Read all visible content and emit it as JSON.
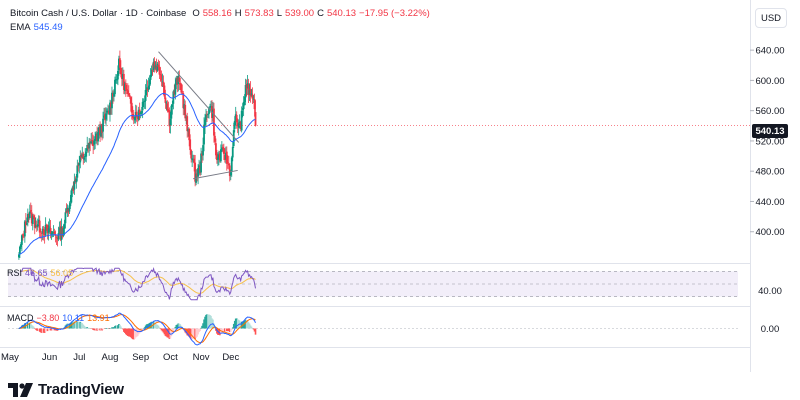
{
  "header": {
    "symbol": "Bitcoin Cash / U.S. Dollar · 1D · Coinbase",
    "open_label": "O",
    "open": "558.16",
    "high_label": "H",
    "high": "573.83",
    "low_label": "L",
    "low": "539.00",
    "close_label": "C",
    "close": "540.13",
    "change": "−17.95 (−3.22%)",
    "ema_label": "EMA",
    "ema_value": "545.49"
  },
  "currency_button": "USD",
  "last_price_tag": "540.13",
  "rsi_legend": {
    "label": "RSI",
    "v1": "46.65",
    "v2": "56.05"
  },
  "macd_legend": {
    "label": "MACD",
    "v1": "−3.80",
    "v2": "10.11",
    "v3": "13.91"
  },
  "brand": {
    "name": "TradingView"
  },
  "colors": {
    "up": "#089981",
    "down": "#f23645",
    "ema": "#2962ff",
    "rsi_line": "#7e57c2",
    "rsi_ma": "#f7c14a",
    "rsi_band": "#ede7f6",
    "macd_line": "#2962ff",
    "signal_line": "#ff6d00",
    "hist_up_strong": "#26a69a",
    "hist_up_weak": "#b2dfdb",
    "hist_down_strong": "#ff5252",
    "hist_down_weak": "#ffcdd2",
    "trendline": "#787b86",
    "text": "#131722"
  },
  "chart_data": [
    {
      "type": "candlestick",
      "title": "Bitcoin Cash / U.S. Dollar · 1D · Coinbase",
      "x_labels": [
        "May",
        "Jun",
        "Jul",
        "Aug",
        "Sep",
        "Oct",
        "Nov",
        "Dec"
      ],
      "y_ticks": [
        400,
        440,
        480,
        520,
        560,
        600,
        640
      ],
      "ylim": [
        360,
        660
      ],
      "anchors": [
        {
          "date": "2023-05-01",
          "close": 370
        },
        {
          "date": "2023-05-10",
          "close": 425
        },
        {
          "date": "2023-05-20",
          "close": 408
        },
        {
          "date": "2023-05-30",
          "close": 400
        },
        {
          "date": "2023-06-10",
          "close": 395
        },
        {
          "date": "2023-06-14",
          "close": 402
        },
        {
          "date": "2023-06-22",
          "close": 445
        },
        {
          "date": "2023-06-30",
          "close": 488
        },
        {
          "date": "2023-07-10",
          "close": 510
        },
        {
          "date": "2023-07-20",
          "close": 528
        },
        {
          "date": "2023-07-31",
          "close": 560
        },
        {
          "date": "2023-08-06",
          "close": 598
        },
        {
          "date": "2023-08-10",
          "close": 620
        },
        {
          "date": "2023-08-18",
          "close": 582
        },
        {
          "date": "2023-08-24",
          "close": 558
        },
        {
          "date": "2023-08-31",
          "close": 556
        },
        {
          "date": "2023-09-08",
          "close": 595
        },
        {
          "date": "2023-09-14",
          "close": 622
        },
        {
          "date": "2023-09-18",
          "close": 618
        },
        {
          "date": "2023-09-22",
          "close": 608
        },
        {
          "date": "2023-09-25",
          "close": 585
        },
        {
          "date": "2023-09-30",
          "close": 548
        },
        {
          "date": "2023-10-04",
          "close": 580
        },
        {
          "date": "2023-10-08",
          "close": 600
        },
        {
          "date": "2023-10-12",
          "close": 590
        },
        {
          "date": "2023-10-18",
          "close": 535
        },
        {
          "date": "2023-10-22",
          "close": 505
        },
        {
          "date": "2023-10-26",
          "close": 474
        },
        {
          "date": "2023-10-31",
          "close": 484
        },
        {
          "date": "2023-11-05",
          "close": 545
        },
        {
          "date": "2023-11-09",
          "close": 568
        },
        {
          "date": "2023-11-13",
          "close": 555
        },
        {
          "date": "2023-11-16",
          "close": 496
        },
        {
          "date": "2023-11-20",
          "close": 500
        },
        {
          "date": "2023-11-24",
          "close": 505
        },
        {
          "date": "2023-11-28",
          "close": 490
        },
        {
          "date": "2023-12-01",
          "close": 478
        },
        {
          "date": "2023-12-03",
          "close": 520
        },
        {
          "date": "2023-12-06",
          "close": 550
        },
        {
          "date": "2023-12-10",
          "close": 538
        },
        {
          "date": "2023-12-13",
          "close": 558
        },
        {
          "date": "2023-12-16",
          "close": 595
        },
        {
          "date": "2023-12-20",
          "close": 582
        },
        {
          "date": "2023-12-23",
          "close": 580
        },
        {
          "date": "2023-12-26",
          "close": 540
        }
      ],
      "trendlines": [
        {
          "name": "descending-resistance",
          "points": [
            {
              "date": "2023-09-19",
              "price": 638
            },
            {
              "date": "2023-12-09",
              "price": 518
            }
          ]
        },
        {
          "name": "support",
          "points": [
            {
              "date": "2023-10-24",
              "price": 470
            },
            {
              "date": "2023-12-08",
              "price": 481
            }
          ]
        }
      ],
      "series": [
        {
          "name": "EMA",
          "last": 545.49
        }
      ],
      "last_price": 540.13
    },
    {
      "type": "line",
      "title": "RSI",
      "y_ticks": [
        40
      ],
      "band": [
        30,
        70
      ],
      "series": [
        {
          "name": "RSI",
          "last": 46.65
        },
        {
          "name": "RSI MA",
          "last": 56.05
        }
      ]
    },
    {
      "type": "bar",
      "title": "MACD",
      "y_ticks": [
        0
      ],
      "series": [
        {
          "name": "Histogram",
          "last": -3.8
        },
        {
          "name": "MACD",
          "last": 10.11
        },
        {
          "name": "Signal",
          "last": 13.91
        }
      ]
    }
  ]
}
